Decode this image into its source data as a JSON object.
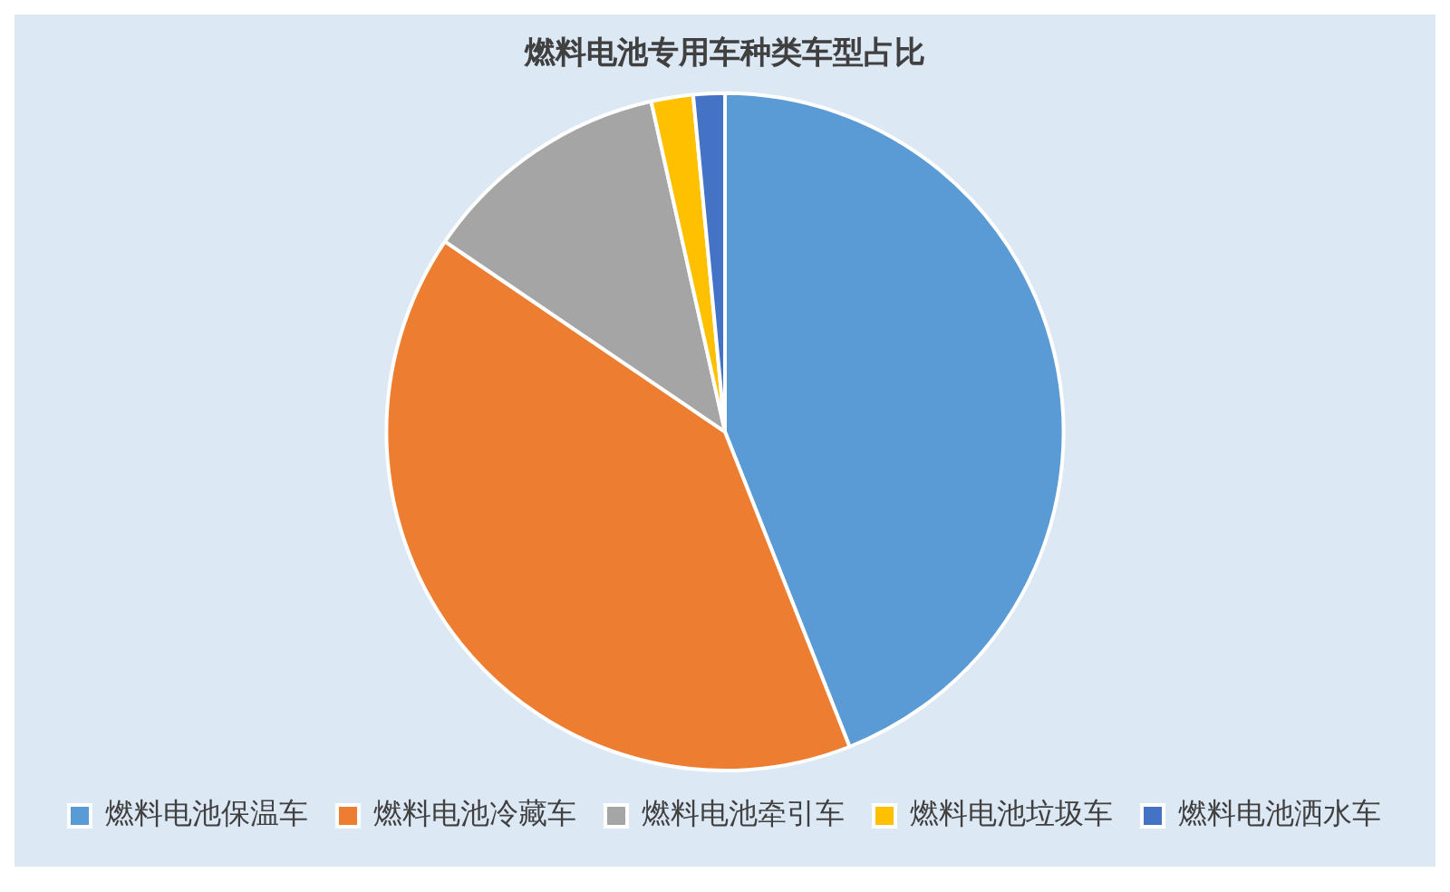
{
  "chart_data": {
    "type": "pie",
    "title": "燃料电池专用车种类车型占比",
    "categories": [
      "燃料电池保温车",
      "燃料电池冷藏车",
      "燃料电池牵引车",
      "燃料电池垃圾车",
      "燃料电池洒水车"
    ],
    "values": [
      44,
      40.5,
      12,
      2,
      1.5
    ],
    "colors": [
      "#5b9bd5",
      "#ed7d31",
      "#a5a5a5",
      "#ffc000",
      "#4472c4"
    ],
    "legend": "bottom"
  }
}
